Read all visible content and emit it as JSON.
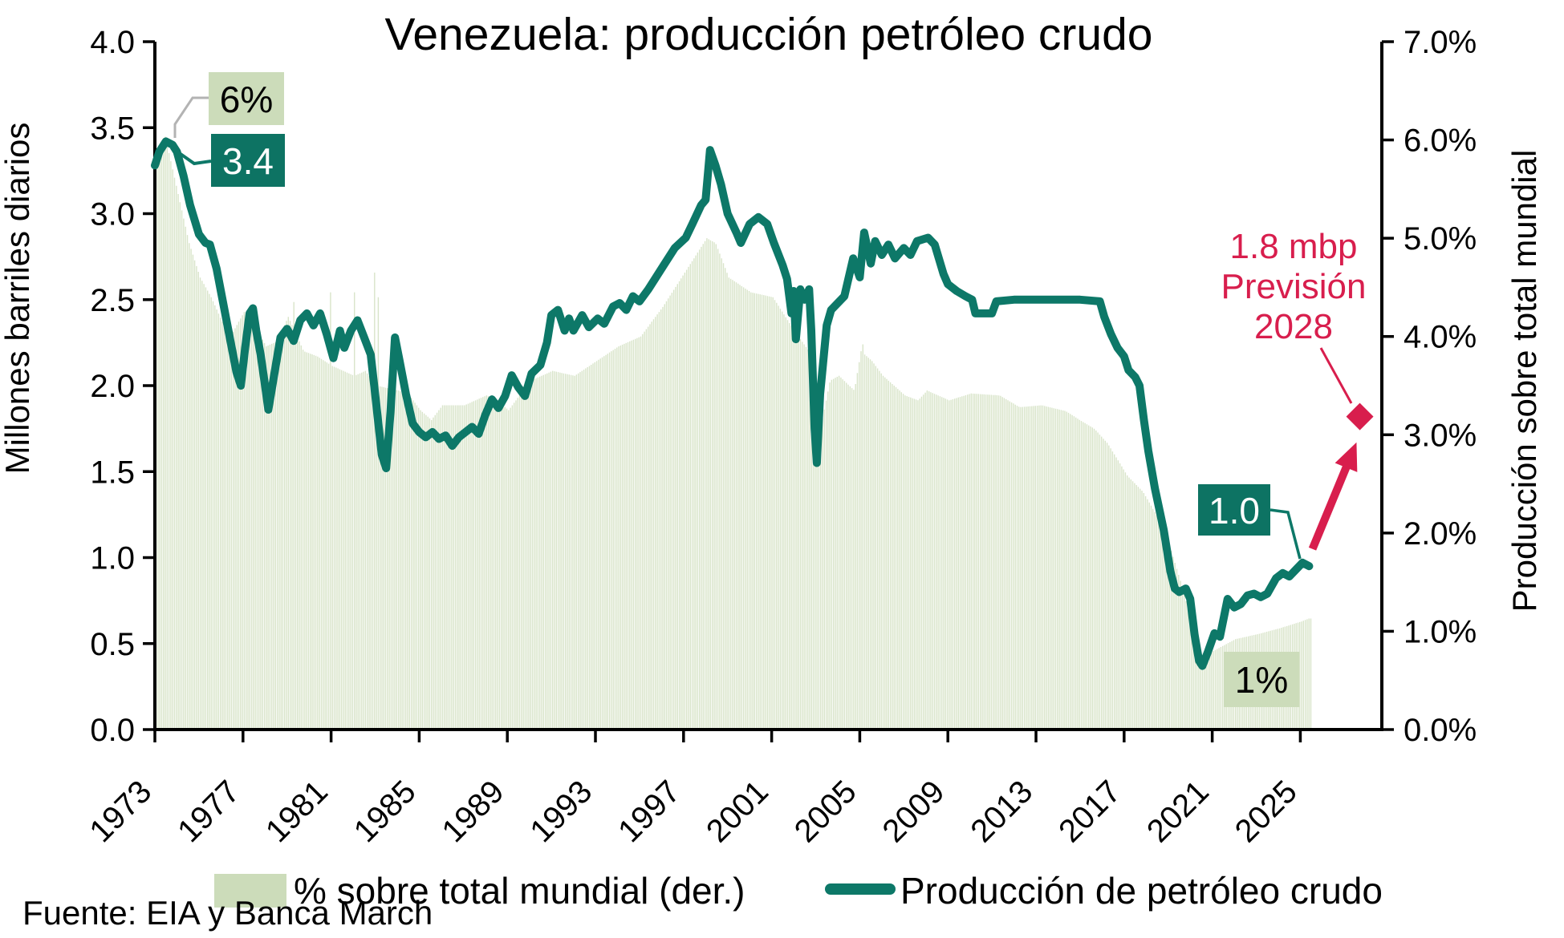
{
  "title": "Venezuela: producción petróleo crudo",
  "source": "Fuente: EIA y Banca March",
  "left_axis": {
    "label": "Millones barriles diarios",
    "min": 0,
    "max": 4,
    "step": 0.5,
    "tick_labels": [
      "0.0",
      "0.5",
      "1.0",
      "1.5",
      "2.0",
      "2.5",
      "3.0",
      "3.5",
      "4.0"
    ]
  },
  "right_axis": {
    "label": "Producción sobre total mundial",
    "min": 0,
    "max": 7,
    "step": 1,
    "tick_labels": [
      "0.0%",
      "1.0%",
      "2.0%",
      "3.0%",
      "4.0%",
      "5.0%",
      "6.0%",
      "7.0%"
    ]
  },
  "x_axis": {
    "tick_years": [
      1973,
      1977,
      1981,
      1985,
      1989,
      1993,
      1997,
      2001,
      2005,
      2009,
      2013,
      2017,
      2021,
      2025
    ],
    "start": 1973,
    "end": 2028.7
  },
  "legend": [
    {
      "label": "% sobre total mundial (der.)",
      "type": "bar",
      "color": "#ccdcba"
    },
    {
      "label": "Producción de petróleo crudo",
      "type": "line",
      "color": "#0d7868"
    }
  ],
  "annotations": {
    "share_start": {
      "text": "6%"
    },
    "prod_start": {
      "text": "3.4"
    },
    "prod_end": {
      "text": "1.0"
    },
    "share_end": {
      "text": "1%"
    },
    "forecast": {
      "lines": [
        "1.8 mbp",
        "Previsión",
        "2028"
      ],
      "value_mbp": 1.8,
      "year": 2028,
      "diamond": {
        "year": 2027.7,
        "value": 1.82
      },
      "arrow": {
        "from": [
          2025.55,
          1.05
        ],
        "to": [
          2027.55,
          1.67
        ]
      }
    }
  },
  "colors": {
    "line": "#0d7868",
    "bars": "#d8e4c9",
    "green_box": "#ccdcba",
    "teal_box": "#0d7363",
    "crimson": "#d81e4d",
    "gray_connector": "#b3b3b3",
    "axis": "#000000"
  },
  "chart_data": {
    "type": "combo",
    "title": "Venezuela: producción petróleo crudo",
    "x_range": [
      1973,
      2025.4
    ],
    "left_ylim": [
      0,
      4
    ],
    "right_ylim_pct": [
      0,
      7
    ],
    "grid": false,
    "legend_position": "bottom",
    "series": [
      {
        "name": "% sobre total mundial (der.)",
        "type": "bar",
        "axis": "right",
        "unit": "%",
        "frequency": "monthly-interpolated",
        "anchors": [
          [
            1973.0,
            5.85
          ],
          [
            1973.4,
            6.05
          ],
          [
            1974.0,
            5.45
          ],
          [
            1974.5,
            4.95
          ],
          [
            1975.0,
            4.6
          ],
          [
            1975.5,
            4.4
          ],
          [
            1976.0,
            4.15
          ],
          [
            1976.5,
            4.05
          ],
          [
            1977.0,
            4.25
          ],
          [
            1977.5,
            4.1
          ],
          [
            1978.0,
            3.9
          ],
          [
            1978.5,
            3.95
          ],
          [
            1979.0,
            4.2
          ],
          [
            1979.7,
            3.85
          ],
          [
            1980.3,
            3.8
          ],
          [
            1981.0,
            3.7
          ],
          [
            1982.0,
            3.6
          ],
          [
            1982.5,
            3.65
          ],
          [
            1983.0,
            3.5
          ],
          [
            1984.0,
            3.45
          ],
          [
            1984.5,
            3.4
          ],
          [
            1985.0,
            3.25
          ],
          [
            1985.5,
            3.15
          ],
          [
            1986.0,
            3.3
          ],
          [
            1987.0,
            3.3
          ],
          [
            1988.0,
            3.4
          ],
          [
            1988.5,
            3.35
          ],
          [
            1989.0,
            3.25
          ],
          [
            1990.0,
            3.55
          ],
          [
            1991.0,
            3.65
          ],
          [
            1992.0,
            3.6
          ],
          [
            1993.0,
            3.75
          ],
          [
            1994.0,
            3.9
          ],
          [
            1995.0,
            4.0
          ],
          [
            1996.0,
            4.3
          ],
          [
            1997.0,
            4.65
          ],
          [
            1998.0,
            5.0
          ],
          [
            1998.4,
            4.95
          ],
          [
            1999.0,
            4.6
          ],
          [
            2000.0,
            4.45
          ],
          [
            2001.0,
            4.4
          ],
          [
            2002.0,
            4.05
          ],
          [
            2002.8,
            3.8
          ],
          [
            2003.1,
            3.0
          ],
          [
            2003.6,
            3.55
          ],
          [
            2004.0,
            3.6
          ],
          [
            2004.7,
            3.45
          ],
          [
            2005.0,
            3.85
          ],
          [
            2005.5,
            3.75
          ],
          [
            2006.0,
            3.6
          ],
          [
            2007.0,
            3.4
          ],
          [
            2007.6,
            3.35
          ],
          [
            2008.0,
            3.45
          ],
          [
            2009.0,
            3.35
          ],
          [
            2010.0,
            3.42
          ],
          [
            2011.3,
            3.4
          ],
          [
            2012.2,
            3.28
          ],
          [
            2013.2,
            3.3
          ],
          [
            2014.3,
            3.24
          ],
          [
            2015.0,
            3.14
          ],
          [
            2015.6,
            3.06
          ],
          [
            2016.2,
            2.91
          ],
          [
            2016.8,
            2.69
          ],
          [
            2017.1,
            2.58
          ],
          [
            2017.8,
            2.42
          ],
          [
            2018.5,
            2.15
          ],
          [
            2019.0,
            1.88
          ],
          [
            2019.6,
            1.44
          ],
          [
            2020.1,
            1.0
          ],
          [
            2020.5,
            0.72
          ],
          [
            2021.0,
            0.8
          ],
          [
            2021.5,
            0.86
          ],
          [
            2022.0,
            0.92
          ],
          [
            2023.0,
            0.97
          ],
          [
            2024.0,
            1.03
          ],
          [
            2025.0,
            1.1
          ],
          [
            2025.33,
            1.13
          ]
        ],
        "spikes": [
          [
            1979.25,
            4.35
          ],
          [
            1980.92,
            4.45
          ],
          [
            1982.0,
            4.45
          ],
          [
            1982.92,
            4.65
          ],
          [
            1983.08,
            4.4
          ],
          [
            2005.08,
            3.92
          ]
        ]
      },
      {
        "name": "Producción de petróleo crudo",
        "type": "line",
        "axis": "left",
        "unit": "millones de barriles diarios",
        "points": [
          [
            1973.0,
            3.28
          ],
          [
            1973.2,
            3.36
          ],
          [
            1973.5,
            3.42
          ],
          [
            1973.8,
            3.4
          ],
          [
            1974.0,
            3.36
          ],
          [
            1974.3,
            3.22
          ],
          [
            1974.6,
            3.05
          ],
          [
            1975.0,
            2.88
          ],
          [
            1975.3,
            2.83
          ],
          [
            1975.5,
            2.82
          ],
          [
            1975.8,
            2.68
          ],
          [
            1976.1,
            2.48
          ],
          [
            1976.4,
            2.28
          ],
          [
            1976.7,
            2.08
          ],
          [
            1976.9,
            2.0
          ],
          [
            1977.1,
            2.22
          ],
          [
            1977.3,
            2.42
          ],
          [
            1977.45,
            2.45
          ],
          [
            1977.6,
            2.32
          ],
          [
            1977.8,
            2.18
          ],
          [
            1978.0,
            2.0
          ],
          [
            1978.15,
            1.86
          ],
          [
            1978.4,
            2.05
          ],
          [
            1978.7,
            2.28
          ],
          [
            1979.0,
            2.33
          ],
          [
            1979.3,
            2.26
          ],
          [
            1979.6,
            2.38
          ],
          [
            1979.9,
            2.42
          ],
          [
            1980.2,
            2.35
          ],
          [
            1980.5,
            2.42
          ],
          [
            1980.8,
            2.3
          ],
          [
            1981.1,
            2.16
          ],
          [
            1981.4,
            2.32
          ],
          [
            1981.6,
            2.22
          ],
          [
            1981.9,
            2.32
          ],
          [
            1982.2,
            2.38
          ],
          [
            1982.5,
            2.28
          ],
          [
            1982.8,
            2.18
          ],
          [
            1983.0,
            1.95
          ],
          [
            1983.3,
            1.6
          ],
          [
            1983.5,
            1.52
          ],
          [
            1983.7,
            1.85
          ],
          [
            1983.9,
            2.28
          ],
          [
            1984.1,
            2.15
          ],
          [
            1984.4,
            1.95
          ],
          [
            1984.7,
            1.78
          ],
          [
            1985.0,
            1.73
          ],
          [
            1985.3,
            1.7
          ],
          [
            1985.6,
            1.73
          ],
          [
            1985.9,
            1.69
          ],
          [
            1986.2,
            1.71
          ],
          [
            1986.5,
            1.65
          ],
          [
            1986.8,
            1.7
          ],
          [
            1987.1,
            1.73
          ],
          [
            1987.4,
            1.76
          ],
          [
            1987.7,
            1.72
          ],
          [
            1988.0,
            1.83
          ],
          [
            1988.3,
            1.92
          ],
          [
            1988.6,
            1.87
          ],
          [
            1988.9,
            1.94
          ],
          [
            1989.2,
            2.06
          ],
          [
            1989.5,
            1.99
          ],
          [
            1989.8,
            1.94
          ],
          [
            1990.1,
            2.07
          ],
          [
            1990.5,
            2.12
          ],
          [
            1990.8,
            2.25
          ],
          [
            1991.0,
            2.41
          ],
          [
            1991.3,
            2.44
          ],
          [
            1991.6,
            2.32
          ],
          [
            1991.8,
            2.39
          ],
          [
            1992.0,
            2.32
          ],
          [
            1992.4,
            2.41
          ],
          [
            1992.7,
            2.34
          ],
          [
            1993.1,
            2.39
          ],
          [
            1993.4,
            2.36
          ],
          [
            1993.8,
            2.46
          ],
          [
            1994.1,
            2.48
          ],
          [
            1994.4,
            2.44
          ],
          [
            1994.7,
            2.52
          ],
          [
            1995.0,
            2.49
          ],
          [
            1995.4,
            2.56
          ],
          [
            1995.8,
            2.64
          ],
          [
            1996.1,
            2.7
          ],
          [
            1996.6,
            2.8
          ],
          [
            1997.1,
            2.86
          ],
          [
            1997.4,
            2.94
          ],
          [
            1997.8,
            3.05
          ],
          [
            1998.0,
            3.08
          ],
          [
            1998.2,
            3.37
          ],
          [
            1998.45,
            3.28
          ],
          [
            1998.7,
            3.17
          ],
          [
            1999.0,
            3.0
          ],
          [
            1999.4,
            2.89
          ],
          [
            1999.6,
            2.83
          ],
          [
            2000.0,
            2.94
          ],
          [
            2000.4,
            2.98
          ],
          [
            2000.8,
            2.94
          ],
          [
            2001.1,
            2.83
          ],
          [
            2001.5,
            2.7
          ],
          [
            2001.7,
            2.62
          ],
          [
            2001.9,
            2.42
          ],
          [
            2002.0,
            2.55
          ],
          [
            2002.1,
            2.27
          ],
          [
            2002.3,
            2.56
          ],
          [
            2002.5,
            2.5
          ],
          [
            2002.7,
            2.56
          ],
          [
            2002.8,
            2.32
          ],
          [
            2002.95,
            1.75
          ],
          [
            2003.05,
            1.55
          ],
          [
            2003.2,
            1.95
          ],
          [
            2003.5,
            2.35
          ],
          [
            2003.7,
            2.44
          ],
          [
            2004.0,
            2.48
          ],
          [
            2004.3,
            2.52
          ],
          [
            2004.7,
            2.74
          ],
          [
            2005.0,
            2.63
          ],
          [
            2005.2,
            2.89
          ],
          [
            2005.5,
            2.71
          ],
          [
            2005.7,
            2.84
          ],
          [
            2006.0,
            2.76
          ],
          [
            2006.3,
            2.82
          ],
          [
            2006.6,
            2.74
          ],
          [
            2007.0,
            2.8
          ],
          [
            2007.3,
            2.76
          ],
          [
            2007.6,
            2.84
          ],
          [
            2008.1,
            2.86
          ],
          [
            2008.4,
            2.82
          ],
          [
            2008.8,
            2.65
          ],
          [
            2009.0,
            2.59
          ],
          [
            2009.4,
            2.55
          ],
          [
            2009.8,
            2.52
          ],
          [
            2010.1,
            2.5
          ],
          [
            2010.25,
            2.42
          ],
          [
            2011.0,
            2.42
          ],
          [
            2011.2,
            2.49
          ],
          [
            2012.0,
            2.5
          ],
          [
            2013.0,
            2.5
          ],
          [
            2014.0,
            2.5
          ],
          [
            2015.0,
            2.5
          ],
          [
            2015.9,
            2.49
          ],
          [
            2016.1,
            2.4
          ],
          [
            2016.4,
            2.3
          ],
          [
            2016.7,
            2.22
          ],
          [
            2017.0,
            2.17
          ],
          [
            2017.2,
            2.09
          ],
          [
            2017.5,
            2.05
          ],
          [
            2017.7,
            2.0
          ],
          [
            2017.9,
            1.8
          ],
          [
            2018.1,
            1.62
          ],
          [
            2018.4,
            1.4
          ],
          [
            2018.8,
            1.16
          ],
          [
            2019.1,
            0.92
          ],
          [
            2019.3,
            0.82
          ],
          [
            2019.5,
            0.8
          ],
          [
            2019.8,
            0.82
          ],
          [
            2020.0,
            0.76
          ],
          [
            2020.2,
            0.55
          ],
          [
            2020.4,
            0.4
          ],
          [
            2020.55,
            0.37
          ],
          [
            2020.8,
            0.45
          ],
          [
            2021.1,
            0.56
          ],
          [
            2021.35,
            0.54
          ],
          [
            2021.7,
            0.76
          ],
          [
            2022.0,
            0.71
          ],
          [
            2022.3,
            0.73
          ],
          [
            2022.6,
            0.78
          ],
          [
            2022.9,
            0.79
          ],
          [
            2023.2,
            0.77
          ],
          [
            2023.5,
            0.79
          ],
          [
            2023.9,
            0.88
          ],
          [
            2024.2,
            0.91
          ],
          [
            2024.5,
            0.89
          ],
          [
            2024.8,
            0.93
          ],
          [
            2025.1,
            0.97
          ],
          [
            2025.4,
            0.95
          ]
        ]
      },
      {
        "name": "Previsión",
        "type": "point",
        "axis": "left",
        "marker": "diamond",
        "points": [
          [
            2028,
            1.8
          ]
        ]
      }
    ]
  }
}
